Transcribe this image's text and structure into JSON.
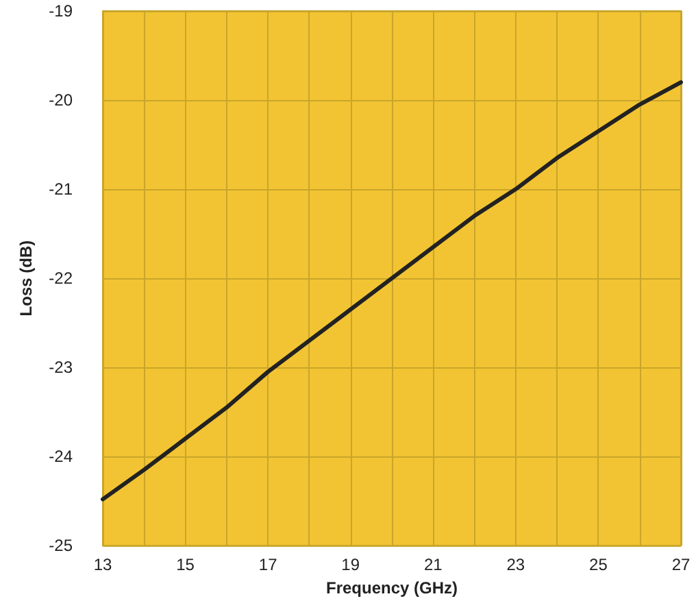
{
  "chart_data": {
    "type": "line",
    "xlabel": "Frequency (GHz)",
    "ylabel": "Loss (dB)",
    "x": [
      13,
      14,
      15,
      16,
      17,
      18,
      19,
      20,
      21,
      22,
      23,
      24,
      25,
      26,
      27
    ],
    "series": [
      {
        "color": "#222222",
        "values": [
          -24.48,
          -24.15,
          -23.8,
          -23.45,
          -23.05,
          -22.7,
          -22.35,
          -22.0,
          -21.65,
          -21.3,
          -21.0,
          -20.65,
          -20.35,
          -20.05,
          -19.8
        ]
      }
    ],
    "xlim": [
      13,
      27
    ],
    "xticks": [
      13,
      {
        "value": 14,
        "label": null
      },
      15,
      {
        "value": 16,
        "label": null
      },
      17,
      {
        "value": 18,
        "label": null
      },
      19,
      {
        "value": 20,
        "label": null
      },
      21,
      {
        "value": 22,
        "label": null
      },
      23,
      {
        "value": 24,
        "label": null
      },
      25,
      {
        "value": 26,
        "label": null
      },
      27
    ],
    "ylim": [
      -25,
      -19
    ],
    "yticks": [
      -25,
      -24,
      -23,
      -22,
      -21,
      -20,
      -19
    ],
    "grid": true,
    "marker": "none",
    "line_style": "solid"
  }
}
